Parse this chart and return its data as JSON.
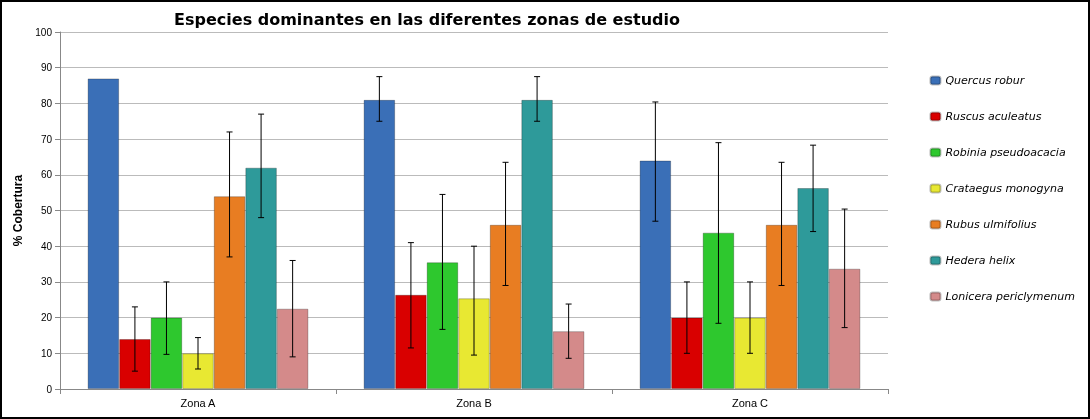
{
  "chart_data": {
    "type": "bar",
    "title": "Especies dominantes en las diferentes zonas de estudio",
    "ylabel": "% Cobertura",
    "categories": [
      "Zona A",
      "Zona B",
      "Zona C"
    ],
    "series": [
      {
        "name": "Quercus robur",
        "color": "#3a6fb7",
        "values": [
          87,
          81,
          64
        ],
        "errors": [
          null,
          [
            75,
            87.5
          ],
          [
            47,
            80.4
          ]
        ]
      },
      {
        "name": "Ruscus aculeatus",
        "color": "#d90000",
        "values": [
          14,
          26.4,
          20
        ],
        "errors": [
          [
            5,
            23
          ],
          [
            11.5,
            41
          ],
          [
            10,
            30
          ]
        ]
      },
      {
        "name": "Robinia pseudoacacia",
        "color": "#2ec82e",
        "values": [
          20,
          35.5,
          43.8
        ],
        "errors": [
          [
            9.7,
            30
          ],
          [
            16.7,
            54.5
          ],
          [
            18.4,
            69
          ]
        ]
      },
      {
        "name": "Crataegus monogyna",
        "color": "#e8e832",
        "values": [
          10,
          25.4,
          20
        ],
        "errors": [
          [
            5.6,
            14.4
          ],
          [
            9.5,
            40
          ],
          [
            10,
            30
          ]
        ]
      },
      {
        "name": "Rubus ulmifolius",
        "color": "#e87d22",
        "values": [
          54,
          46,
          46
        ],
        "errors": [
          [
            37,
            72
          ],
          [
            29,
            63.5
          ],
          [
            29,
            63.5
          ]
        ]
      },
      {
        "name": "Hedera helix",
        "color": "#2e9a9a",
        "values": [
          62,
          81,
          56.3
        ],
        "errors": [
          [
            48,
            77
          ],
          [
            75,
            87.5
          ],
          [
            44.1,
            68.3
          ]
        ]
      },
      {
        "name": "Lonicera periclymenum",
        "color": "#d48a8a",
        "values": [
          22.5,
          16.2,
          33.7
        ],
        "errors": [
          [
            9,
            36
          ],
          [
            8.6,
            23.8
          ],
          [
            17.2,
            50.4
          ]
        ]
      }
    ],
    "ylim": [
      0,
      100
    ],
    "yticks": [
      0,
      10,
      20,
      30,
      40,
      50,
      60,
      70,
      80,
      90,
      100
    ],
    "grid": "y",
    "legend": "right"
  }
}
